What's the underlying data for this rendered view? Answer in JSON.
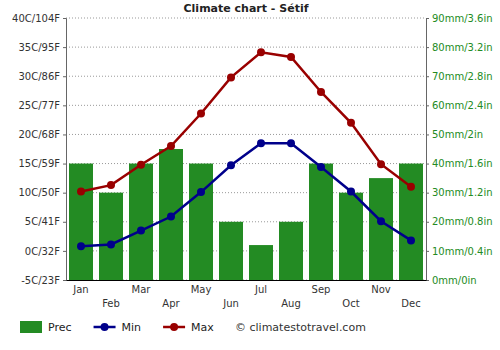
{
  "chart_data": {
    "type": "bar",
    "title": "Climate chart - Sétif",
    "categories": [
      "Jan",
      "Feb",
      "Mar",
      "Apr",
      "May",
      "Jun",
      "Jul",
      "Aug",
      "Sep",
      "Oct",
      "Nov",
      "Dec"
    ],
    "series": [
      {
        "name": "Prec",
        "type": "bar",
        "axis": "y2",
        "color": "#238b23",
        "values": [
          40,
          30,
          40,
          45,
          40,
          20,
          12,
          20,
          40,
          30,
          35,
          40
        ]
      },
      {
        "name": "Min",
        "type": "line",
        "color": "#00008b",
        "marker": "circle",
        "values": [
          0.8,
          1.1,
          3.5,
          5.9,
          10.1,
          14.7,
          18.5,
          18.5,
          14.4,
          10.2,
          5.1,
          1.8
        ]
      },
      {
        "name": "Max",
        "type": "line",
        "color": "#990000",
        "marker": "circle",
        "values": [
          10.2,
          11.3,
          14.8,
          18.0,
          23.6,
          29.8,
          34.1,
          33.3,
          27.3,
          22.0,
          14.9,
          11.0
        ]
      }
    ],
    "ylim": [
      -5,
      40
    ],
    "yticks": [
      {
        "value": -5,
        "label": "-5C/23F"
      },
      {
        "value": 0,
        "label": "0C/32F"
      },
      {
        "value": 5,
        "label": "5C/41F"
      },
      {
        "value": 10,
        "label": "10C/50F"
      },
      {
        "value": 15,
        "label": "15C/59F"
      },
      {
        "value": 20,
        "label": "20C/68F"
      },
      {
        "value": 25,
        "label": "25C/77F"
      },
      {
        "value": 30,
        "label": "30C/86F"
      },
      {
        "value": 35,
        "label": "35C/95F"
      },
      {
        "value": 40,
        "label": "40C/104F"
      }
    ],
    "y2lim": [
      0,
      90
    ],
    "y2ticks": [
      {
        "value": 0,
        "label": "0mm/0in"
      },
      {
        "value": 10,
        "label": "10mm/0.4in"
      },
      {
        "value": 20,
        "label": "20mm/0.8in"
      },
      {
        "value": 30,
        "label": "30mm/1.2in"
      },
      {
        "value": 40,
        "label": "40mm/1.6in"
      },
      {
        "value": 50,
        "label": "50mm/2in"
      },
      {
        "value": 60,
        "label": "60mm/2.4in"
      },
      {
        "value": 70,
        "label": "70mm/2.8in"
      },
      {
        "value": 80,
        "label": "80mm/3.2in"
      },
      {
        "value": 90,
        "label": "90mm/3.6in"
      }
    ],
    "grid": true,
    "legend": "bottom-left",
    "annotations": [
      "© climatestotravel.com"
    ]
  }
}
